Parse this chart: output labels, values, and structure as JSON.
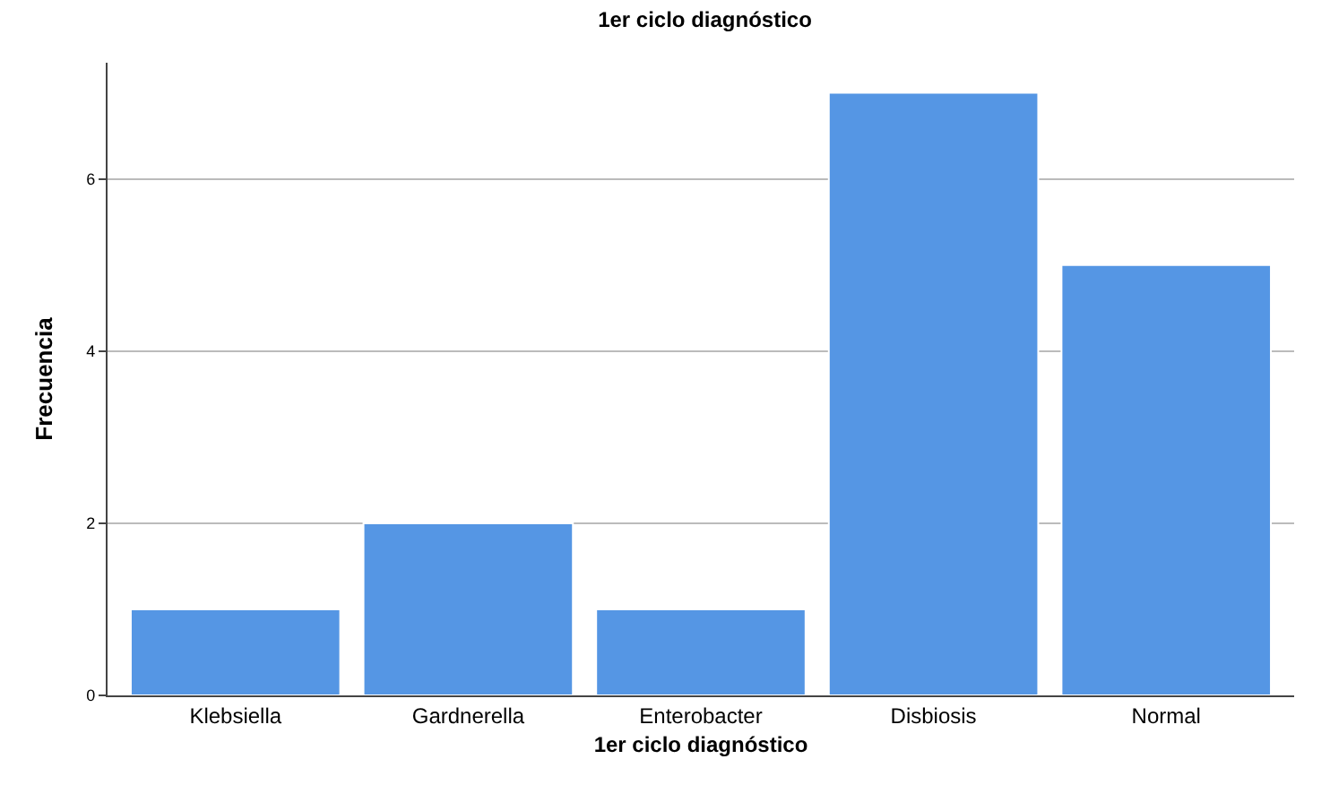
{
  "chart_data": {
    "type": "bar",
    "title": "1er ciclo diagnóstico",
    "xlabel": "1er ciclo diagnóstico",
    "ylabel": "Frecuencia",
    "categories": [
      "Klebsiella",
      "Gardnerella",
      "Enterobacter",
      "Disbiosis",
      "Normal"
    ],
    "values": [
      1,
      2,
      1,
      7,
      5
    ],
    "color": "#5596e4",
    "ylim": [
      0,
      7.35
    ],
    "yticks": [
      0,
      2,
      4,
      6
    ],
    "grid": "y",
    "legend": false
  }
}
